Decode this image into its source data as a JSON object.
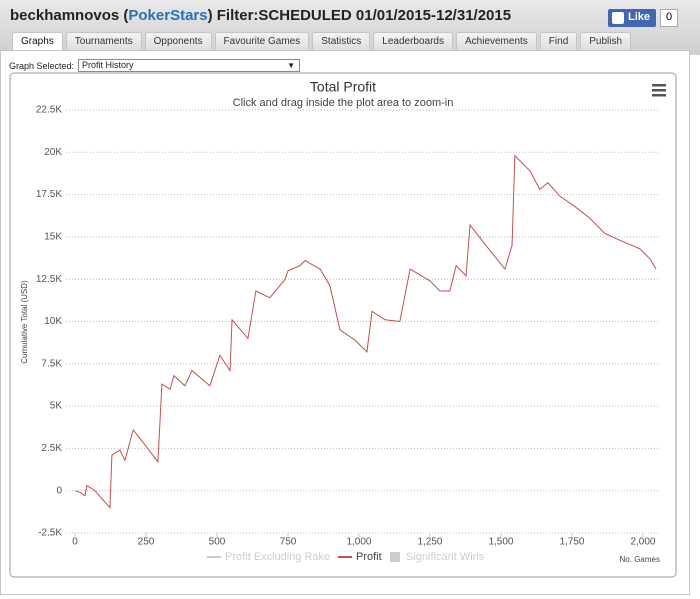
{
  "header": {
    "parts": [
      "beckhamnovos (",
      "PokerStars",
      ") Filter:SCHEDULED 01/01/2015-12/31/2015"
    ],
    "like": {
      "label": "Like",
      "count": "0"
    }
  },
  "tabs": [
    "Graphs",
    "Tournaments",
    "Opponents",
    "Favourite Games",
    "Statistics",
    "Leaderboards",
    "Achievements",
    "Find",
    "Publish"
  ],
  "selector": {
    "label": "Graph Selected:",
    "value": "Profit History"
  },
  "chart_data": {
    "type": "line",
    "title": "Total Profit",
    "subtitle": "Click and drag inside the plot area to zoom-in",
    "y_label": "Cumulative Total (USD)",
    "x_label": "No. Games",
    "xlim": [
      0,
      2060
    ],
    "ylim": [
      -2500,
      22500
    ],
    "xticks": [
      0,
      250,
      500,
      750,
      {
        "value": 1000,
        "label": "1,000"
      },
      {
        "value": 1250,
        "label": "1,250"
      },
      {
        "value": 1500,
        "label": "1,500"
      },
      {
        "value": 1750,
        "label": "1,750"
      },
      {
        "value": 2000,
        "label": "2,000"
      }
    ],
    "yticks": [
      {
        "value": -2500,
        "label": "-2.5K"
      },
      0,
      {
        "value": 2500,
        "label": "2.5K"
      },
      {
        "value": 5000,
        "label": "5K"
      },
      {
        "value": 7500,
        "label": "7.5K"
      },
      {
        "value": 10000,
        "label": "10K"
      },
      {
        "value": 12500,
        "label": "12.5K"
      },
      {
        "value": 15000,
        "label": "15K"
      },
      {
        "value": 17500,
        "label": "17.5K"
      },
      {
        "value": 20000,
        "label": "20K"
      },
      {
        "value": 22500,
        "label": "22.5K"
      }
    ],
    "grid": true,
    "series": [
      {
        "name": "Profit Excluding Rake",
        "color": "#cccccc",
        "visible": false
      },
      {
        "name": "Profit",
        "color": "#c0504d",
        "visible": true,
        "x": [
          0,
          18,
          35,
          42,
          70,
          123,
          130,
          158,
          176,
          205,
          247,
          292,
          306,
          335,
          348,
          387,
          412,
          475,
          510,
          546,
          553,
          609,
          637,
          686,
          740,
          750,
          792,
          810,
          863,
          898,
          933,
          986,
          1028,
          1046,
          1092,
          1144,
          1180,
          1250,
          1285,
          1320,
          1342,
          1377,
          1391,
          1461,
          1514,
          1539,
          1549,
          1602,
          1637,
          1665,
          1708,
          1760,
          1813,
          1866,
          1919,
          1989,
          2025,
          2046
        ],
        "values": [
          0,
          -100,
          -300,
          300,
          0,
          -1000,
          2100,
          2400,
          1800,
          3600,
          2700,
          1700,
          6300,
          6000,
          6800,
          6200,
          7100,
          6200,
          8000,
          7100,
          10100,
          9000,
          11800,
          11400,
          12500,
          13000,
          13300,
          13600,
          13100,
          12100,
          9500,
          8900,
          8200,
          10600,
          10100,
          10000,
          13100,
          12400,
          11800,
          11800,
          13300,
          12700,
          15700,
          14200,
          13100,
          14500,
          19800,
          18900,
          17800,
          18200,
          17400,
          16800,
          16100,
          15200,
          14800,
          14300,
          13700,
          13100
        ]
      },
      {
        "name": "Significant Wins",
        "color": "#cccccc",
        "visible": false
      }
    ]
  }
}
